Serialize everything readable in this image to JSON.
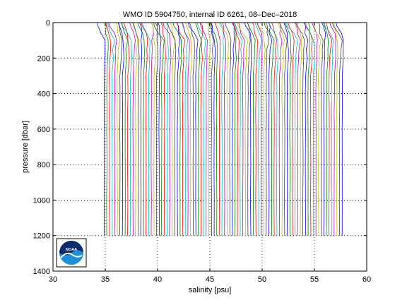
{
  "chart_data": {
    "type": "line",
    "title": "WMO ID 5904750, internal ID 6261, 08–Dec–2018",
    "xlabel": "salinity [psu]",
    "ylabel": "pressure [dbar]",
    "xlim": [
      30,
      60
    ],
    "ylim": [
      1400,
      0
    ],
    "y_reversed": true,
    "grid": true,
    "grid_style": "dotted",
    "x_ticks": [
      30,
      35,
      40,
      45,
      50,
      55,
      60
    ],
    "y_ticks": [
      0,
      200,
      400,
      600,
      800,
      1000,
      1200,
      1400
    ],
    "profiles": {
      "count": 92,
      "first_salinity_offset": 34.9,
      "offset_step": 0.25,
      "surface_salinity_range": [
        33.8,
        34.6
      ],
      "deep_salinity": 34.6,
      "max_pressure_dbar": 1200,
      "note_pressures_dbar": [
        0,
        20,
        60,
        100,
        150,
        200,
        300,
        400,
        500,
        600,
        800,
        1000,
        1200
      ]
    },
    "series_colors": [
      "#0000ff",
      "#008000",
      "#ff0000",
      "#00bfbf",
      "#bf00bf",
      "#bfbf00",
      "#404040"
    ],
    "legend": "none"
  },
  "logo": {
    "text": "NOAA",
    "position": "bottom-left"
  }
}
